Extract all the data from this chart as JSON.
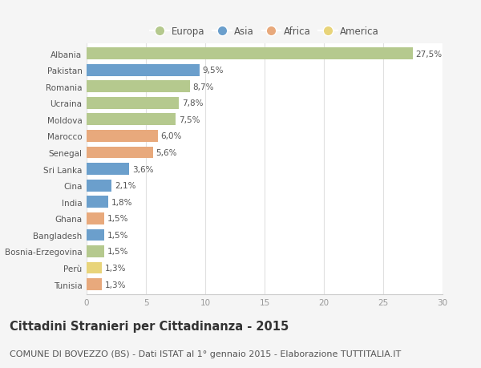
{
  "countries": [
    "Albania",
    "Pakistan",
    "Romania",
    "Ucraina",
    "Moldova",
    "Marocco",
    "Senegal",
    "Sri Lanka",
    "Cina",
    "India",
    "Ghana",
    "Bangladesh",
    "Bosnia-Erzegovina",
    "Perù",
    "Tunisia"
  ],
  "values": [
    27.5,
    9.5,
    8.7,
    7.8,
    7.5,
    6.0,
    5.6,
    3.6,
    2.1,
    1.8,
    1.5,
    1.5,
    1.5,
    1.3,
    1.3
  ],
  "labels": [
    "27,5%",
    "9,5%",
    "8,7%",
    "7,8%",
    "7,5%",
    "6,0%",
    "5,6%",
    "3,6%",
    "2,1%",
    "1,8%",
    "1,5%",
    "1,5%",
    "1,5%",
    "1,3%",
    "1,3%"
  ],
  "regions": [
    "Europa",
    "Asia",
    "Europa",
    "Europa",
    "Europa",
    "Africa",
    "Africa",
    "Asia",
    "Asia",
    "Asia",
    "Africa",
    "Asia",
    "Europa",
    "America",
    "Africa"
  ],
  "colors": {
    "Europa": "#b5c98e",
    "Asia": "#6b9fcc",
    "Africa": "#e8a97c",
    "America": "#e8d47a"
  },
  "xlim": [
    0,
    30
  ],
  "xticks": [
    0,
    5,
    10,
    15,
    20,
    25,
    30
  ],
  "title": "Cittadini Stranieri per Cittadinanza - 2015",
  "subtitle": "COMUNE DI BOVEZZO (BS) - Dati ISTAT al 1° gennaio 2015 - Elaborazione TUTTITALIA.IT",
  "background_color": "#f5f5f5",
  "plot_background": "#ffffff",
  "bar_height": 0.72,
  "title_fontsize": 10.5,
  "subtitle_fontsize": 8,
  "label_fontsize": 7.5,
  "tick_fontsize": 7.5,
  "legend_fontsize": 8.5,
  "ytick_fontsize": 7.5
}
